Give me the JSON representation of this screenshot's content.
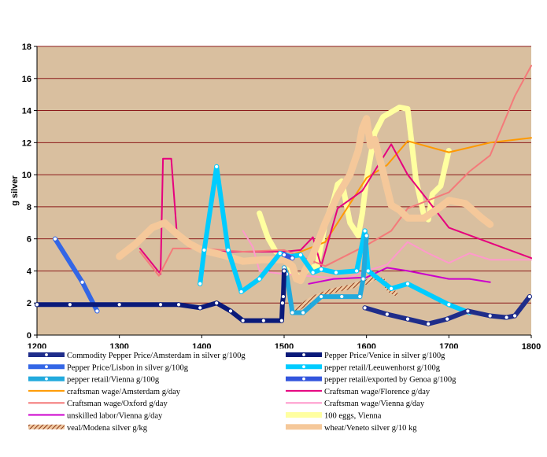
{
  "chart_data": {
    "type": "line",
    "title": "",
    "xlabel": "",
    "ylabel": "g silver",
    "xlim": [
      1200,
      1800
    ],
    "ylim": [
      0,
      18
    ],
    "xticks": [
      1200,
      1300,
      1400,
      1500,
      1600,
      1700,
      1800
    ],
    "yticks": [
      0,
      2,
      4,
      6,
      8,
      10,
      12,
      14,
      16,
      18
    ],
    "grid": "horizontal",
    "plot_background": "#d9bf9f",
    "grid_color": "#8b1a1a",
    "legend_position": "bottom",
    "series": [
      {
        "name": "Commodity Pepper Price/Amsterdam in silver g/100g",
        "color": "#1f2d8a",
        "width": 6,
        "markers": true,
        "points": [
          [
            1598,
            1.7
          ],
          [
            1625,
            1.3
          ],
          [
            1650,
            1.0
          ],
          [
            1675,
            0.7
          ],
          [
            1698,
            1.0
          ],
          [
            1723,
            1.5
          ],
          [
            1750,
            1.2
          ],
          [
            1770,
            1.1
          ],
          [
            1780,
            1.2
          ],
          [
            1798,
            2.4
          ]
        ]
      },
      {
        "name": "Pepper Price/Venice in silver g/100g",
        "color": "#0a1a7a",
        "width": 6,
        "markers": true,
        "points": [
          [
            1200,
            1.9
          ],
          [
            1240,
            1.9
          ],
          [
            1300,
            1.9
          ],
          [
            1350,
            1.9
          ],
          [
            1372,
            1.9
          ],
          [
            1398,
            1.7
          ],
          [
            1418,
            2.0
          ],
          [
            1435,
            1.5
          ],
          [
            1450,
            0.9
          ],
          [
            1475,
            0.9
          ],
          [
            1497,
            0.9
          ],
          [
            1498,
            2.0
          ],
          [
            1499,
            2.4
          ],
          [
            1500,
            4.0
          ]
        ]
      },
      {
        "name": "Pepper Price/Lisbon in silver g/100g",
        "color": "#3366e6",
        "width": 6,
        "markers": true,
        "points": [
          [
            1222,
            6.0
          ],
          [
            1255,
            3.3
          ],
          [
            1273,
            1.5
          ]
        ]
      },
      {
        "name": "pepper retail/Leeuwenhorst g/100g",
        "color": "#00ccff",
        "width": 6,
        "markers": true,
        "points": [
          [
            1398,
            3.2
          ],
          [
            1403,
            5.3
          ],
          [
            1418,
            10.5
          ],
          [
            1432,
            5.3
          ],
          [
            1448,
            2.7
          ],
          [
            1470,
            3.5
          ],
          [
            1495,
            5.1
          ],
          [
            1508,
            4.9
          ],
          [
            1520,
            5.0
          ],
          [
            1535,
            3.9
          ],
          [
            1545,
            4.1
          ],
          [
            1563,
            3.9
          ],
          [
            1588,
            4.0
          ],
          [
            1598,
            6.5
          ],
          [
            1602,
            4.0
          ],
          [
            1630,
            2.9
          ],
          [
            1650,
            3.2
          ],
          [
            1700,
            1.9
          ],
          [
            1725,
            1.4
          ]
        ]
      },
      {
        "name": "pepper retail/Vienna g/100g",
        "color": "#22aadd",
        "width": 6,
        "markers": true,
        "points": [
          [
            1500,
            4.2
          ],
          [
            1503,
            3.8
          ],
          [
            1510,
            1.4
          ],
          [
            1523,
            1.4
          ],
          [
            1545,
            2.4
          ],
          [
            1570,
            2.4
          ],
          [
            1592,
            2.4
          ],
          [
            1596,
            3.5
          ],
          [
            1600,
            6.2
          ]
        ]
      },
      {
        "name": "pepper retail/exported by Genoa g/100g",
        "color": "#3355dd",
        "width": 6,
        "markers": true,
        "points": [
          [
            1500,
            5.0
          ],
          [
            1510,
            4.8
          ]
        ]
      },
      {
        "name": "craftsman wage/Amsterdam g/day",
        "color": "#ff9900",
        "width": 2,
        "markers": false,
        "points": [
          [
            1500,
            4.8
          ],
          [
            1550,
            5.8
          ],
          [
            1600,
            9.8
          ],
          [
            1625,
            10.6
          ],
          [
            1650,
            12.1
          ],
          [
            1700,
            11.4
          ],
          [
            1725,
            11.7
          ],
          [
            1750,
            12.0
          ],
          [
            1800,
            12.3
          ]
        ]
      },
      {
        "name": "Craftsman wage/Florence g/day",
        "color": "#e6007e",
        "width": 2,
        "markers": false,
        "points": [
          [
            1325,
            5.4
          ],
          [
            1350,
            3.8
          ],
          [
            1353,
            11.0
          ],
          [
            1363,
            11.0
          ],
          [
            1370,
            6.2
          ],
          [
            1400,
            5.2
          ],
          [
            1500,
            5.2
          ],
          [
            1520,
            5.3
          ],
          [
            1535,
            6.1
          ],
          [
            1545,
            4.3
          ],
          [
            1565,
            7.9
          ],
          [
            1595,
            9.0
          ],
          [
            1630,
            11.9
          ],
          [
            1650,
            10.0
          ],
          [
            1673,
            8.5
          ],
          [
            1700,
            6.7
          ],
          [
            1800,
            4.8
          ]
        ]
      },
      {
        "name": "Craftsman wage/Oxford g/day",
        "color": "#f47a7a",
        "width": 2,
        "markers": false,
        "points": [
          [
            1325,
            5.2
          ],
          [
            1348,
            3.7
          ],
          [
            1365,
            5.4
          ],
          [
            1400,
            5.4
          ],
          [
            1450,
            5.2
          ],
          [
            1500,
            5.3
          ],
          [
            1550,
            4.3
          ],
          [
            1600,
            5.6
          ],
          [
            1630,
            6.5
          ],
          [
            1650,
            7.9
          ],
          [
            1700,
            8.9
          ],
          [
            1725,
            10.2
          ],
          [
            1750,
            11.2
          ],
          [
            1780,
            14.9
          ],
          [
            1800,
            16.8
          ]
        ]
      },
      {
        "name": "Craftsman wage/Vienna g/day",
        "color": "#ff99cc",
        "width": 2,
        "markers": false,
        "points": [
          [
            1450,
            6.5
          ],
          [
            1462,
            5.5
          ],
          [
            1470,
            4.0
          ],
          [
            1500,
            3.8
          ],
          [
            1550,
            3.6
          ],
          [
            1575,
            3.5
          ],
          [
            1600,
            4.0
          ],
          [
            1625,
            4.4
          ],
          [
            1650,
            5.8
          ],
          [
            1675,
            5.1
          ],
          [
            1700,
            4.5
          ],
          [
            1725,
            5.1
          ],
          [
            1750,
            4.7
          ],
          [
            1800,
            4.7
          ]
        ]
      },
      {
        "name": "unskilled labor/Vienna g/day",
        "color": "#cc00cc",
        "width": 2,
        "markers": false,
        "points": [
          [
            1530,
            3.2
          ],
          [
            1560,
            3.5
          ],
          [
            1600,
            3.6
          ],
          [
            1625,
            4.2
          ],
          [
            1650,
            4.0
          ],
          [
            1700,
            3.5
          ],
          [
            1725,
            3.5
          ],
          [
            1750,
            3.3
          ]
        ]
      },
      {
        "name": "100 eggs, Vienna",
        "color": "#ffffa0",
        "width": 7,
        "markers": false,
        "points": [
          [
            1470,
            7.6
          ],
          [
            1480,
            6.1
          ],
          [
            1490,
            5.2
          ],
          [
            1500,
            5.0
          ],
          [
            1510,
            3.9
          ],
          [
            1520,
            3.6
          ],
          [
            1530,
            4.2
          ],
          [
            1540,
            4.3
          ],
          [
            1550,
            7.0
          ],
          [
            1560,
            8.4
          ],
          [
            1565,
            9.4
          ],
          [
            1570,
            9.6
          ],
          [
            1580,
            7.0
          ],
          [
            1590,
            6.2
          ],
          [
            1595,
            7.6
          ],
          [
            1600,
            9.7
          ],
          [
            1610,
            12.6
          ],
          [
            1620,
            13.6
          ],
          [
            1640,
            14.2
          ],
          [
            1650,
            14.1
          ],
          [
            1660,
            9.7
          ],
          [
            1670,
            7.4
          ],
          [
            1675,
            7.2
          ],
          [
            1680,
            8.8
          ],
          [
            1690,
            9.3
          ],
          [
            1700,
            11.5
          ]
        ]
      },
      {
        "name": "veal/Modena silver g/kg",
        "color": "#a0522d",
        "width": 6,
        "markers": false,
        "pattern": "hatch",
        "points": [
          [
            1515,
            1.6
          ],
          [
            1535,
            2.3
          ],
          [
            1555,
            2.7
          ],
          [
            1570,
            2.9
          ],
          [
            1580,
            3.0
          ],
          [
            1590,
            3.2
          ],
          [
            1600,
            3.3
          ],
          [
            1610,
            3.6
          ],
          [
            1620,
            3.4
          ],
          [
            1628,
            2.8
          ],
          [
            1635,
            2.6
          ]
        ]
      },
      {
        "name": "wheat/Veneto silver g/10 kg",
        "color": "#f5c89a",
        "width": 9,
        "markers": false,
        "points": [
          [
            1300,
            4.9
          ],
          [
            1320,
            5.7
          ],
          [
            1340,
            6.7
          ],
          [
            1355,
            7.0
          ],
          [
            1370,
            6.3
          ],
          [
            1385,
            5.7
          ],
          [
            1400,
            5.3
          ],
          [
            1425,
            5.0
          ],
          [
            1450,
            4.6
          ],
          [
            1475,
            4.7
          ],
          [
            1500,
            4.7
          ],
          [
            1510,
            4.3
          ],
          [
            1515,
            3.5
          ],
          [
            1520,
            3.4
          ],
          [
            1525,
            4.0
          ],
          [
            1535,
            5.0
          ],
          [
            1550,
            7.0
          ],
          [
            1565,
            8.7
          ],
          [
            1580,
            10.0
          ],
          [
            1590,
            11.5
          ],
          [
            1595,
            12.9
          ],
          [
            1600,
            13.5
          ],
          [
            1605,
            11.8
          ],
          [
            1610,
            12.2
          ],
          [
            1620,
            10.2
          ],
          [
            1630,
            8.1
          ],
          [
            1640,
            7.8
          ],
          [
            1650,
            7.3
          ],
          [
            1670,
            7.3
          ],
          [
            1690,
            8.0
          ],
          [
            1700,
            8.4
          ],
          [
            1720,
            8.2
          ],
          [
            1740,
            7.3
          ],
          [
            1750,
            6.9
          ]
        ]
      }
    ]
  }
}
